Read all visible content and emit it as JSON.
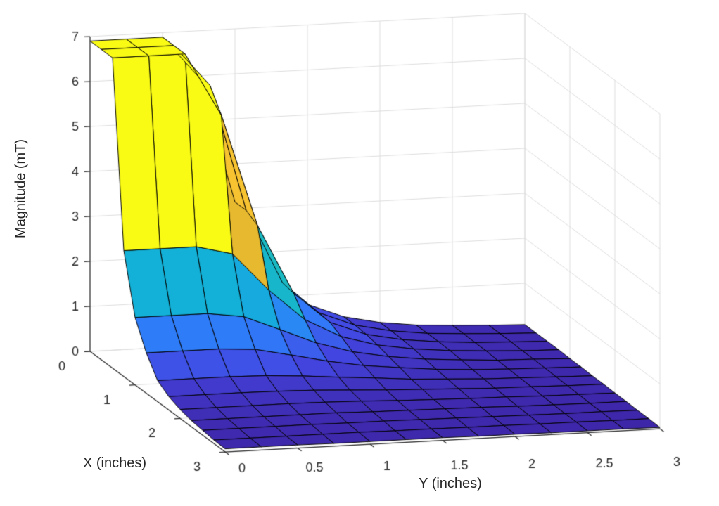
{
  "chart_data": {
    "type": "surface3d",
    "title": "",
    "xlabel": "X (inches)",
    "ylabel": "Y (inches)",
    "zlabel": "Magnitude (mT)",
    "xlim": [
      0,
      3
    ],
    "ylim": [
      0,
      3
    ],
    "zlim": [
      0,
      7
    ],
    "clim": [
      0.03,
      6.9
    ],
    "grid": true,
    "legend": false,
    "x": [
      0,
      0.25,
      0.5,
      0.75,
      1,
      1.25,
      1.5,
      1.75,
      2,
      2.25,
      2.5,
      2.75,
      3
    ],
    "y": [
      0,
      0.25,
      0.5,
      0.75,
      1,
      1.25,
      1.5,
      1.75,
      2,
      2.25,
      2.5,
      2.75,
      3
    ],
    "z": [
      [
        6.9,
        6.9,
        6.9,
        5.97,
        3.15,
        1.5,
        0.79,
        0.47,
        0.3,
        0.2,
        0.15,
        0.11,
        0.08
      ],
      [
        6.9,
        6.9,
        6.9,
        5.97,
        3.15,
        1.5,
        0.79,
        0.47,
        0.3,
        0.2,
        0.15,
        0.11,
        0.08
      ],
      [
        6.9,
        6.9,
        6.9,
        5.5,
        3.0,
        1.45,
        0.76,
        0.45,
        0.29,
        0.2,
        0.14,
        0.11,
        0.08
      ],
      [
        2.8,
        2.8,
        2.8,
        2.6,
        1.75,
        1.05,
        0.63,
        0.4,
        0.27,
        0.19,
        0.14,
        0.1,
        0.08
      ],
      [
        1.5,
        1.5,
        1.5,
        1.39,
        1.06,
        0.72,
        0.48,
        0.33,
        0.23,
        0.17,
        0.12,
        0.1,
        0.07
      ],
      [
        0.9,
        0.9,
        0.9,
        0.85,
        0.68,
        0.5,
        0.36,
        0.27,
        0.19,
        0.14,
        0.11,
        0.09,
        0.07
      ],
      [
        0.47,
        0.47,
        0.47,
        0.45,
        0.4,
        0.33,
        0.27,
        0.2,
        0.16,
        0.12,
        0.1,
        0.08,
        0.06
      ],
      [
        0.3,
        0.3,
        0.3,
        0.29,
        0.27,
        0.23,
        0.19,
        0.16,
        0.13,
        0.1,
        0.09,
        0.07,
        0.06
      ],
      [
        0.2,
        0.2,
        0.2,
        0.2,
        0.19,
        0.17,
        0.14,
        0.12,
        0.1,
        0.09,
        0.07,
        0.06,
        0.05
      ],
      [
        0.14,
        0.14,
        0.14,
        0.14,
        0.14,
        0.12,
        0.11,
        0.1,
        0.09,
        0.07,
        0.06,
        0.05,
        0.05
      ],
      [
        0.11,
        0.11,
        0.11,
        0.11,
        0.1,
        0.1,
        0.09,
        0.08,
        0.07,
        0.06,
        0.05,
        0.05,
        0.04
      ],
      [
        0.08,
        0.08,
        0.08,
        0.08,
        0.08,
        0.07,
        0.07,
        0.06,
        0.06,
        0.05,
        0.05,
        0.04,
        0.04
      ],
      [
        0.07,
        0.07,
        0.07,
        0.06,
        0.06,
        0.06,
        0.06,
        0.05,
        0.05,
        0.04,
        0.04,
        0.04,
        0.03
      ]
    ],
    "x_ticks": [
      0,
      1,
      2,
      3
    ],
    "x_tick_labels": [
      "0",
      "1",
      "2",
      "3"
    ],
    "y_ticks": [
      0,
      0.5,
      1,
      1.5,
      2,
      2.5,
      3
    ],
    "y_tick_labels": [
      "0",
      "0.5",
      "1",
      "1.5",
      "2",
      "2.5",
      "3"
    ],
    "z_ticks": [
      0,
      1,
      2,
      3,
      4,
      5,
      6,
      7
    ],
    "z_tick_labels": [
      "0",
      "1",
      "2",
      "3",
      "4",
      "5",
      "6",
      "7"
    ],
    "colormap": {
      "name": "parula",
      "stops": [
        {
          "t": 0.0,
          "c": "#3E26A8"
        },
        {
          "t": 0.1,
          "c": "#4345E0"
        },
        {
          "t": 0.2,
          "c": "#3277F9"
        },
        {
          "t": 0.3,
          "c": "#2098F0"
        },
        {
          "t": 0.4,
          "c": "#12B0D8"
        },
        {
          "t": 0.5,
          "c": "#22C2B1"
        },
        {
          "t": 0.6,
          "c": "#5CC977"
        },
        {
          "t": 0.7,
          "c": "#A5C638"
        },
        {
          "t": 0.8,
          "c": "#E9B92F"
        },
        {
          "t": 0.9,
          "c": "#FEC932"
        },
        {
          "t": 1.0,
          "c": "#F9FB15"
        }
      ]
    },
    "colors": {
      "background": "#FFFFFF",
      "grid": "#DCDCDC",
      "axis": "#262626",
      "text": "#262626",
      "mesh_edge": "#000000"
    }
  }
}
